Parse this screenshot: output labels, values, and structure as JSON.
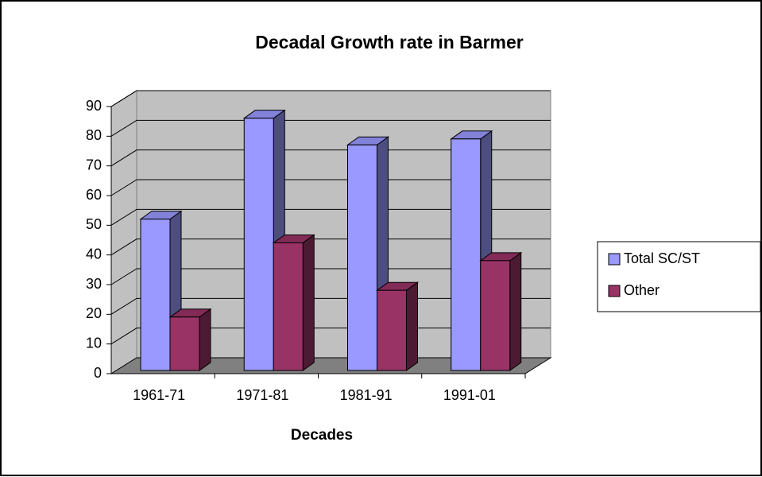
{
  "chart_data": {
    "type": "bar3d",
    "title": "Decadal Growth rate in Barmer",
    "x_label": "Decades",
    "categories": [
      "1961-71",
      "1971-81",
      "1981-91",
      "1991-01"
    ],
    "series": [
      {
        "name": "Total SC/ST",
        "color": "#9999ff",
        "values": [
          51,
          85,
          76,
          78
        ]
      },
      {
        "name": "Other",
        "color": "#993366",
        "values": [
          18,
          43,
          27,
          37
        ]
      }
    ],
    "ylim": [
      0,
      90
    ],
    "yticks": [
      0,
      10,
      20,
      30,
      40,
      50,
      60,
      70,
      80,
      90
    ],
    "grid": true,
    "legend": "right"
  }
}
